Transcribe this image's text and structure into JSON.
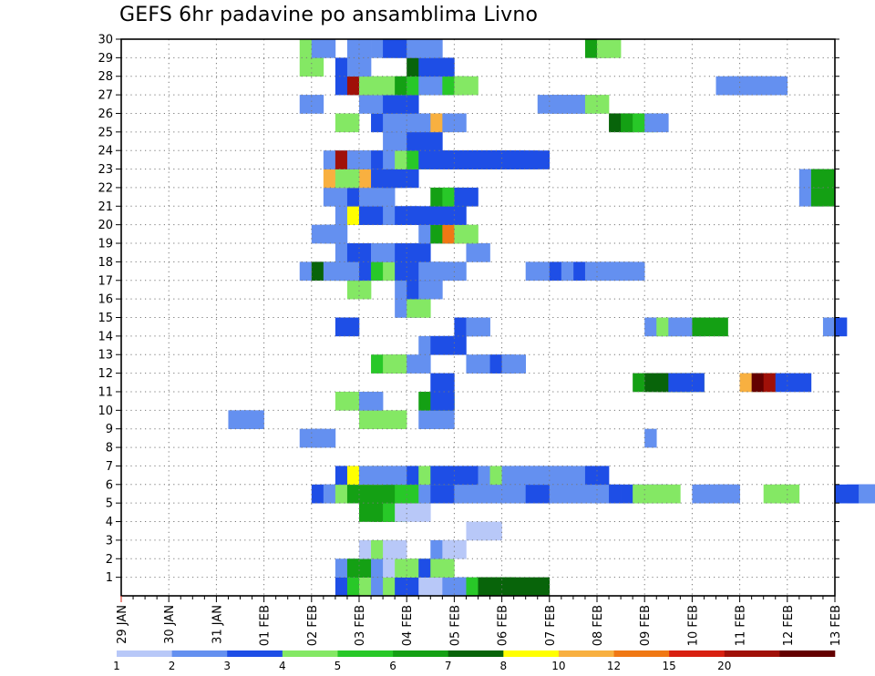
{
  "title": "GEFS 6hr padavine po ansamblima Livno",
  "chart_data": {
    "type": "heatmap",
    "title": "GEFS 6hr padavine po ansamblima Livno",
    "x_tick_labels": [
      "29 JAN",
      "30 JAN",
      "31 JAN",
      "01 FEB",
      "02 FEB",
      "03 FEB",
      "04 FEB",
      "05 FEB",
      "06 FEB",
      "07 FEB",
      "08 FEB",
      "09 FEB",
      "10 FEB",
      "11 FEB",
      "12 FEB",
      "13 FEB"
    ],
    "y_tick_labels": [
      "1",
      "2",
      "3",
      "4",
      "5",
      "6",
      "7",
      "8",
      "9",
      "10",
      "11",
      "12",
      "13",
      "14",
      "15",
      "16",
      "17",
      "18",
      "19",
      "20",
      "21",
      "22",
      "23",
      "24",
      "25",
      "26",
      "27",
      "28",
      "29",
      "30"
    ],
    "ylim": [
      0,
      30
    ],
    "time_steps_per_day": 4,
    "grid": "dotted",
    "legend": {
      "position": "bottom",
      "labels": [
        "1",
        "2",
        "3",
        "4",
        "5",
        "6",
        "7",
        "8",
        "10",
        "12",
        "15",
        "20"
      ],
      "colors": [
        "#b8c8f8",
        "#6490f0",
        "#1e4ee6",
        "#84e864",
        "#28c828",
        "#14a014",
        "#08640a",
        "#ffff00",
        "#f8b040",
        "#f07814",
        "#d82010",
        "#a01008",
        "#640000"
      ]
    },
    "cells": [
      [
        1,
        18,
        2,
        8
      ],
      [
        1,
        19,
        4,
        3
      ],
      [
        1,
        20,
        3,
        3
      ],
      [
        1,
        21,
        1,
        2
      ],
      [
        1,
        22,
        3,
        2
      ],
      [
        1,
        23,
        2,
        3
      ],
      [
        1,
        24,
        2,
        3
      ],
      [
        1,
        25,
        0,
        2
      ],
      [
        1,
        26,
        0,
        2
      ],
      [
        1,
        27,
        1,
        0
      ],
      [
        1,
        28,
        1,
        0
      ],
      [
        1,
        29,
        4,
        3
      ],
      [
        1,
        30,
        6,
        5
      ],
      [
        2,
        18,
        1,
        1
      ],
      [
        2,
        19,
        5,
        1
      ],
      [
        2,
        20,
        5,
        1
      ],
      [
        2,
        21,
        1,
        1
      ],
      [
        2,
        22,
        0,
        2
      ],
      [
        2,
        23,
        3,
        1
      ],
      [
        2,
        24,
        3,
        2
      ],
      [
        2,
        25,
        2,
        1
      ],
      [
        2,
        26,
        3,
        1
      ],
      [
        3,
        20,
        0,
        1
      ],
      [
        3,
        21,
        3,
        1
      ],
      [
        3,
        22,
        0,
        1
      ],
      [
        3,
        26,
        1,
        1
      ],
      [
        3,
        27,
        0,
        1
      ],
      [
        4,
        29,
        0,
        1
      ],
      [
        4,
        30,
        0,
        1
      ],
      [
        5,
        20,
        5,
        2
      ],
      [
        5,
        21,
        5,
        2
      ],
      [
        5,
        22,
        4,
        1
      ],
      [
        5,
        23,
        0,
        2
      ],
      [
        6,
        16,
        2,
        4
      ],
      [
        6,
        17,
        1,
        1
      ],
      [
        6,
        18,
        3,
        2
      ],
      [
        6,
        19,
        5,
        1
      ],
      [
        6,
        20,
        5,
        1
      ],
      [
        6,
        21,
        5,
        1
      ],
      [
        6,
        22,
        5,
        1
      ],
      [
        6,
        23,
        4,
        3
      ],
      [
        6,
        25,
        1,
        0
      ],
      [
        6,
        26,
        2,
        3
      ],
      [
        6,
        27,
        2,
        2
      ],
      [
        6,
        28,
        1,
        2
      ],
      [
        6,
        29,
        1,
        2
      ],
      [
        6,
        32,
        1,
        1
      ],
      [
        6,
        33,
        1,
        1
      ],
      [
        6,
        34,
        2,
        3
      ],
      [
        6,
        35,
        2,
        3
      ],
      [
        6,
        36,
        1,
        1
      ],
      [
        6,
        37,
        1,
        1
      ],
      [
        6,
        39,
        1,
        2
      ],
      [
        6,
        40,
        1,
        0
      ],
      [
        6,
        41,
        2,
        0
      ],
      [
        6,
        42,
        2,
        3
      ],
      [
        6,
        43,
        3,
        3
      ],
      [
        6,
        48,
        1,
        2
      ],
      [
        6,
        49,
        1,
        2
      ],
      [
        6,
        50,
        1,
        0
      ],
      [
        6,
        51,
        1,
        0
      ],
      [
        6,
        54,
        3,
        1
      ],
      [
        6,
        55,
        3,
        1
      ],
      [
        6,
        60,
        2,
        4
      ],
      [
        6,
        61,
        2,
        4
      ],
      [
        6,
        62,
        1,
        1
      ],
      [
        6,
        63,
        1,
        0
      ],
      [
        7,
        18,
        2,
        1
      ],
      [
        7,
        19,
        7,
        2
      ],
      [
        7,
        20,
        1,
        1
      ],
      [
        7,
        21,
        1,
        1
      ],
      [
        7,
        22,
        1,
        1
      ],
      [
        7,
        23,
        1,
        0
      ],
      [
        7,
        24,
        2,
        0
      ],
      [
        7,
        25,
        3,
        2
      ],
      [
        7,
        26,
        2,
        0
      ],
      [
        7,
        27,
        2,
        0
      ],
      [
        7,
        28,
        2,
        0
      ],
      [
        7,
        29,
        2,
        0
      ],
      [
        7,
        30,
        1,
        0
      ],
      [
        7,
        31,
        3,
        0
      ],
      [
        7,
        32,
        1,
        1
      ],
      [
        7,
        33,
        1,
        1
      ],
      [
        7,
        34,
        1,
        1
      ],
      [
        7,
        35,
        1,
        2
      ],
      [
        7,
        36,
        1,
        0
      ],
      [
        7,
        37,
        1,
        0
      ],
      [
        7,
        38,
        1,
        0
      ],
      [
        7,
        39,
        2,
        1
      ],
      [
        9,
        15,
        1,
        1
      ],
      [
        9,
        16,
        1,
        0
      ],
      [
        9,
        17,
        1,
        0
      ],
      [
        9,
        44,
        1,
        0
      ],
      [
        10,
        9,
        1,
        1
      ],
      [
        10,
        10,
        1,
        1
      ],
      [
        10,
        20,
        3,
        3
      ],
      [
        10,
        25,
        1,
        1
      ],
      [
        10,
        26,
        1,
        1
      ],
      [
        11,
        18,
        3,
        1
      ],
      [
        11,
        20,
        1,
        1
      ],
      [
        11,
        25,
        5,
        2
      ],
      [
        11,
        26,
        2,
        1
      ],
      [
        12,
        26,
        2,
        1
      ],
      [
        12,
        43,
        5,
        4
      ],
      [
        12,
        44,
        6,
        3
      ],
      [
        12,
        45,
        6,
        3
      ],
      [
        12,
        46,
        2,
        2
      ],
      [
        12,
        52,
        8,
        2
      ],
      [
        12,
        53,
        12,
        0
      ],
      [
        12,
        54,
        11,
        0
      ],
      [
        12,
        55,
        2,
        2
      ],
      [
        13,
        21,
        4,
        2
      ],
      [
        13,
        22,
        3,
        1
      ],
      [
        13,
        24,
        1,
        1
      ],
      [
        13,
        29,
        1,
        1
      ],
      [
        13,
        30,
        1,
        1
      ],
      [
        13,
        31,
        2,
        1
      ],
      [
        13,
        32,
        1,
        1
      ],
      [
        14,
        25,
        1,
        1
      ],
      [
        14,
        26,
        2,
        1
      ],
      [
        14,
        27,
        2,
        1
      ],
      [
        15,
        18,
        2,
        1
      ],
      [
        15,
        28,
        2,
        1
      ],
      [
        15,
        29,
        1,
        1
      ],
      [
        15,
        30,
        1,
        0
      ],
      [
        15,
        44,
        1,
        1
      ],
      [
        15,
        45,
        3,
        1
      ],
      [
        15,
        46,
        1,
        1
      ],
      [
        15,
        47,
        1,
        1
      ],
      [
        15,
        48,
        5,
        2
      ],
      [
        15,
        59,
        1,
        0
      ],
      [
        15,
        60,
        2,
        0
      ],
      [
        16,
        23,
        1,
        1
      ],
      [
        16,
        24,
        3,
        1
      ],
      [
        17,
        19,
        3,
        1
      ],
      [
        17,
        23,
        1,
        1
      ],
      [
        17,
        24,
        2,
        1
      ],
      [
        17,
        25,
        1,
        1
      ],
      [
        18,
        15,
        1,
        1
      ],
      [
        18,
        16,
        6,
        3
      ],
      [
        18,
        17,
        1,
        1
      ],
      [
        18,
        18,
        1,
        1
      ],
      [
        18,
        19,
        1,
        1
      ],
      [
        18,
        20,
        2,
        1
      ],
      [
        18,
        21,
        4,
        1
      ],
      [
        18,
        22,
        3,
        1
      ],
      [
        18,
        23,
        2,
        2
      ],
      [
        18,
        24,
        2,
        2
      ],
      [
        18,
        25,
        1,
        2
      ],
      [
        18,
        26,
        1,
        2
      ],
      [
        18,
        34,
        1,
        0
      ],
      [
        18,
        35,
        1,
        0
      ],
      [
        18,
        36,
        2,
        2
      ],
      [
        18,
        37,
        1,
        0
      ],
      [
        18,
        39,
        1,
        1
      ],
      [
        18,
        40,
        1,
        2
      ],
      [
        18,
        41,
        1,
        2
      ],
      [
        19,
        18,
        1,
        1
      ],
      [
        19,
        19,
        2,
        1
      ],
      [
        19,
        21,
        1,
        1
      ],
      [
        19,
        22,
        1,
        0
      ],
      [
        19,
        23,
        2,
        2
      ],
      [
        19,
        29,
        1,
        1
      ],
      [
        20,
        16,
        1,
        1
      ],
      [
        20,
        17,
        1,
        1
      ],
      [
        20,
        25,
        1,
        1
      ],
      [
        20,
        26,
        5,
        1
      ],
      [
        20,
        27,
        9,
        1
      ],
      [
        20,
        28,
        3,
        1
      ],
      [
        21,
        18,
        1,
        1
      ],
      [
        21,
        19,
        7,
        1
      ],
      [
        21,
        20,
        2,
        2
      ],
      [
        21,
        22,
        1,
        1
      ],
      [
        21,
        23,
        2,
        1
      ],
      [
        21,
        24,
        2,
        1
      ],
      [
        21,
        26,
        2,
        1
      ],
      [
        21,
        27,
        2,
        1
      ],
      [
        22,
        17,
        1,
        1
      ],
      [
        22,
        19,
        2,
        2
      ],
      [
        22,
        20,
        1,
        2
      ],
      [
        22,
        26,
        5,
        1
      ],
      [
        22,
        27,
        4,
        1
      ],
      [
        22,
        28,
        2,
        1
      ],
      [
        22,
        57,
        1,
        1
      ],
      [
        22,
        58,
        5,
        1
      ],
      [
        23,
        17,
        8,
        3
      ],
      [
        23,
        18,
        3,
        1
      ],
      [
        23,
        21,
        2,
        2
      ],
      [
        23,
        22,
        2,
        2
      ],
      [
        23,
        57,
        1,
        1
      ],
      [
        23,
        58,
        5,
        1
      ],
      [
        24,
        17,
        1,
        1
      ],
      [
        24,
        18,
        11,
        1
      ],
      [
        24,
        19,
        1,
        1
      ],
      [
        24,
        20,
        1,
        1
      ],
      [
        24,
        21,
        2,
        1
      ],
      [
        24,
        22,
        1,
        1
      ],
      [
        24,
        23,
        3,
        1
      ],
      [
        24,
        24,
        4,
        1
      ],
      [
        24,
        25,
        2,
        4
      ],
      [
        24,
        26,
        2,
        4
      ],
      [
        24,
        27,
        2,
        4
      ],
      [
        24,
        28,
        2,
        4
      ],
      [
        24,
        29,
        2,
        4
      ],
      [
        24,
        30,
        2,
        4
      ],
      [
        24,
        31,
        2,
        4
      ],
      [
        25,
        22,
        1,
        2
      ],
      [
        25,
        23,
        1,
        2
      ],
      [
        25,
        24,
        2,
        2
      ],
      [
        26,
        18,
        3,
        1
      ],
      [
        26,
        21,
        2,
        1
      ],
      [
        26,
        22,
        1,
        1
      ],
      [
        26,
        23,
        1,
        1
      ],
      [
        26,
        25,
        1,
        1
      ],
      [
        26,
        26,
        8,
        1
      ],
      [
        26,
        27,
        1,
        1
      ],
      [
        26,
        41,
        6,
        1
      ],
      [
        26,
        42,
        5,
        1
      ],
      [
        26,
        43,
        4,
        1
      ],
      [
        26,
        44,
        1,
        1
      ],
      [
        27,
        15,
        1,
        1
      ],
      [
        27,
        20,
        1,
        2
      ],
      [
        27,
        21,
        1,
        2
      ],
      [
        27,
        22,
        2,
        2
      ],
      [
        27,
        35,
        1,
        2
      ],
      [
        27,
        36,
        1,
        2
      ],
      [
        27,
        38,
        1,
        1
      ],
      [
        27,
        39,
        3,
        1
      ],
      [
        28,
        18,
        2,
        1
      ],
      [
        28,
        19,
        11,
        1
      ],
      [
        28,
        20,
        3,
        1
      ],
      [
        28,
        21,
        3,
        1
      ],
      [
        28,
        22,
        3,
        1
      ],
      [
        28,
        23,
        5,
        1
      ],
      [
        28,
        24,
        4,
        1
      ],
      [
        28,
        25,
        1,
        1
      ],
      [
        28,
        26,
        1,
        1
      ],
      [
        28,
        27,
        4,
        1
      ],
      [
        28,
        28,
        3,
        1
      ],
      [
        28,
        50,
        1,
        3
      ],
      [
        28,
        51,
        1,
        3
      ],
      [
        28,
        52,
        1,
        3
      ],
      [
        29,
        15,
        3,
        1
      ],
      [
        29,
        18,
        2,
        1
      ],
      [
        29,
        19,
        1,
        1
      ],
      [
        29,
        24,
        6,
        1
      ],
      [
        29,
        25,
        2,
        1
      ],
      [
        29,
        26,
        2,
        1
      ],
      [
        30,
        15,
        3,
        1
      ],
      [
        30,
        16,
        1,
        1
      ],
      [
        30,
        19,
        1,
        1
      ],
      [
        30,
        21,
        1,
        1
      ],
      [
        30,
        22,
        2,
        1
      ],
      [
        30,
        23,
        2,
        1
      ],
      [
        30,
        24,
        1,
        1
      ],
      [
        30,
        25,
        1,
        1
      ],
      [
        30,
        39,
        5,
        1
      ],
      [
        30,
        40,
        3,
        1
      ]
    ]
  }
}
